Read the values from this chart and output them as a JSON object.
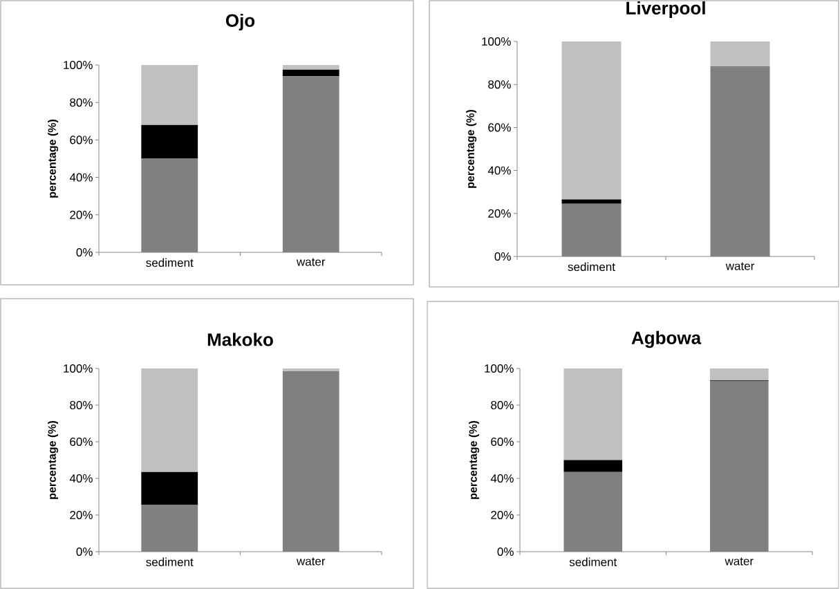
{
  "chart_data": [
    {
      "type": "bar",
      "title": "Ojo",
      "ylabel": "percentage (%)",
      "categories": [
        "sediment",
        "water"
      ],
      "stacked": true,
      "ylim": [
        0,
        100
      ],
      "yticks": [
        {
          "value": 0,
          "label": "0%"
        },
        {
          "value": 20,
          "label": "20%"
        },
        {
          "value": 40,
          "label": "40%"
        },
        {
          "value": 60,
          "label": "60%"
        },
        {
          "value": 80,
          "label": "80%"
        },
        {
          "value": 100,
          "label": "100%"
        }
      ],
      "series": [
        {
          "color": "#808080",
          "values": [
            50,
            94
          ]
        },
        {
          "color": "#000000",
          "values": [
            18,
            3.5
          ]
        },
        {
          "color": "#c0c0c0",
          "values": [
            32,
            2.5
          ]
        }
      ]
    },
    {
      "type": "bar",
      "title": "Liverpool",
      "ylabel": "percentage (%)",
      "categories": [
        "sediment",
        "water"
      ],
      "stacked": true,
      "ylim": [
        0,
        100
      ],
      "yticks": [
        {
          "value": 0,
          "label": "0%"
        },
        {
          "value": 20,
          "label": "20%"
        },
        {
          "value": 40,
          "label": "40%"
        },
        {
          "value": 60,
          "label": "60%"
        },
        {
          "value": 80,
          "label": "80%"
        },
        {
          "value": 100,
          "label": "100%"
        }
      ],
      "series": [
        {
          "color": "#808080",
          "values": [
            24.5,
            88
          ]
        },
        {
          "color": "#000000",
          "values": [
            2,
            0.3
          ]
        },
        {
          "color": "#c0c0c0",
          "values": [
            73.5,
            11.7
          ]
        }
      ]
    },
    {
      "type": "bar",
      "title": "Makoko",
      "ylabel": "percentage (%)",
      "categories": [
        "sediment",
        "water"
      ],
      "stacked": true,
      "ylim": [
        0,
        100
      ],
      "yticks": [
        {
          "value": 0,
          "label": "0%"
        },
        {
          "value": 20,
          "label": "20%"
        },
        {
          "value": 40,
          "label": "40%"
        },
        {
          "value": 60,
          "label": "60%"
        },
        {
          "value": 80,
          "label": "80%"
        },
        {
          "value": 100,
          "label": "100%"
        }
      ],
      "series": [
        {
          "color": "#808080",
          "values": [
            25.5,
            98.5
          ]
        },
        {
          "color": "#000000",
          "values": [
            18,
            0
          ]
        },
        {
          "color": "#c0c0c0",
          "values": [
            56.5,
            1.5
          ]
        }
      ]
    },
    {
      "type": "bar",
      "title": "Agbowa",
      "ylabel": "percentage (%)",
      "categories": [
        "sediment",
        "water"
      ],
      "stacked": true,
      "ylim": [
        0,
        100
      ],
      "yticks": [
        {
          "value": 0,
          "label": "0%"
        },
        {
          "value": 20,
          "label": "20%"
        },
        {
          "value": 40,
          "label": "40%"
        },
        {
          "value": 60,
          "label": "60%"
        },
        {
          "value": 80,
          "label": "80%"
        },
        {
          "value": 100,
          "label": "100%"
        }
      ],
      "series": [
        {
          "color": "#808080",
          "values": [
            43.5,
            93
          ]
        },
        {
          "color": "#000000",
          "values": [
            6.5,
            0.5
          ]
        },
        {
          "color": "#c0c0c0",
          "values": [
            50,
            6.5
          ]
        }
      ]
    }
  ]
}
